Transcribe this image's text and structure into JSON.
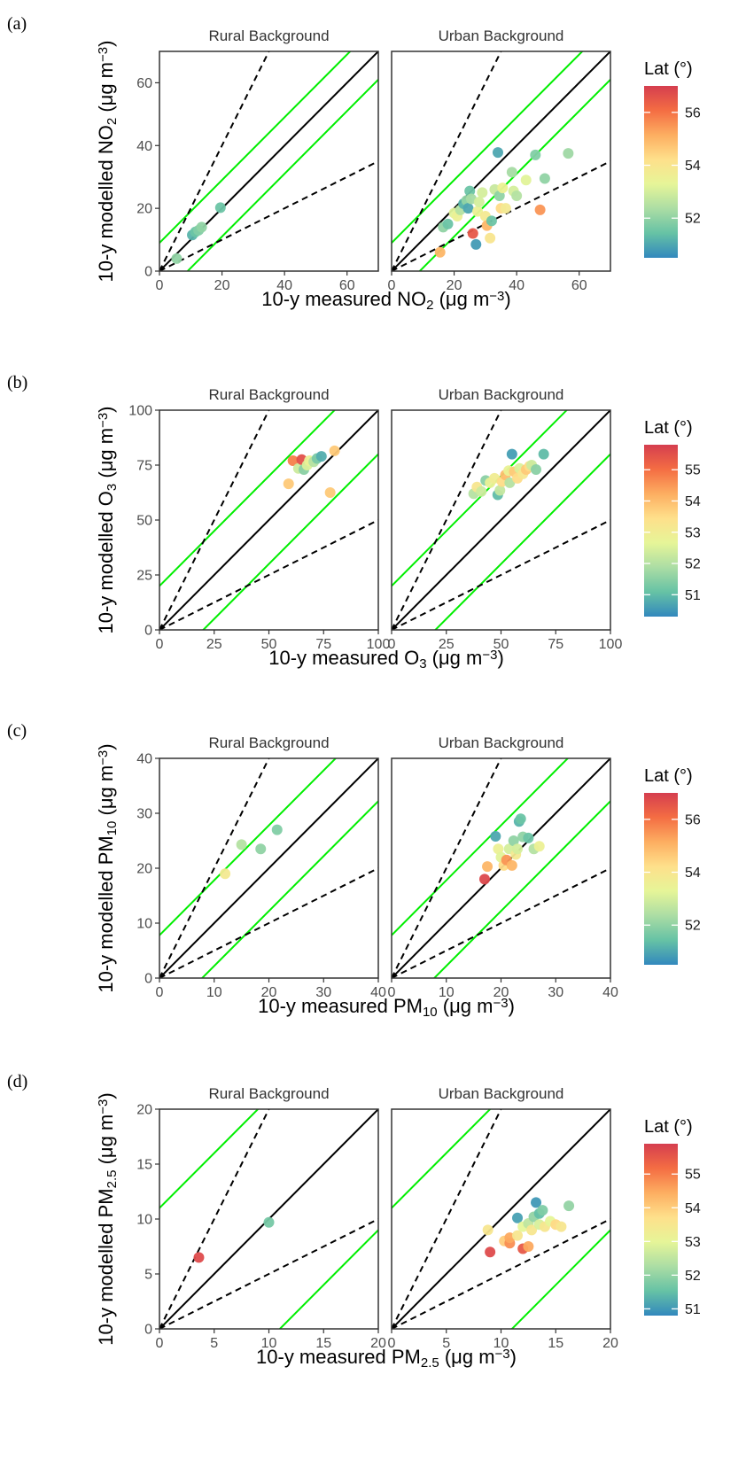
{
  "figure": {
    "colorbar_colors": [
      "#3288bd",
      "#66c2a5",
      "#abdda4",
      "#e6f598",
      "#fee08b",
      "#fdae61",
      "#f46d43",
      "#d53e4f"
    ],
    "line_colors": {
      "one_to_one": "#000000",
      "factor_of_two": "#000000",
      "offset": "#00ee00"
    }
  },
  "chart_data": [
    {
      "panel_label": "(a)",
      "type": "scatter",
      "xlabel": {
        "pre": "10-y measured NO",
        "sub": "2",
        "post": " (μg m",
        "sup": "−3",
        "end": ")"
      },
      "ylabel": {
        "pre": "10-y modelled NO",
        "sub": "2",
        "post": " (μg m",
        "sup": "−3",
        "end": ")"
      },
      "xlim": [
        0,
        70
      ],
      "ylim": [
        0,
        70
      ],
      "xticks": [
        0,
        20,
        40,
        60
      ],
      "yticks": [
        0,
        20,
        40,
        60
      ],
      "offset": 9,
      "legend": {
        "title": "Lat (°)",
        "range": [
          50.5,
          57.0
        ],
        "ticks": [
          52,
          54,
          56
        ]
      },
      "facets": [
        {
          "title": "Rural Background",
          "points": [
            {
              "x": 5.5,
              "y": 4.0,
              "lat": 52.0
            },
            {
              "x": 10.5,
              "y": 11.5,
              "lat": 51.2
            },
            {
              "x": 11.5,
              "y": 12.5,
              "lat": 51.5
            },
            {
              "x": 12.5,
              "y": 13.0,
              "lat": 51.8
            },
            {
              "x": 13.5,
              "y": 14.0,
              "lat": 52.0
            },
            {
              "x": 19.5,
              "y": 20.2,
              "lat": 51.5
            }
          ]
        },
        {
          "title": "Urban Background",
          "points": [
            {
              "x": 15.5,
              "y": 6.0,
              "lat": 55.0
            },
            {
              "x": 16.5,
              "y": 14.0,
              "lat": 52.0
            },
            {
              "x": 18.0,
              "y": 15.0,
              "lat": 51.5
            },
            {
              "x": 20.0,
              "y": 18.5,
              "lat": 53.2
            },
            {
              "x": 21.0,
              "y": 17.5,
              "lat": 53.5
            },
            {
              "x": 22.0,
              "y": 19.5,
              "lat": 52.5
            },
            {
              "x": 23.0,
              "y": 21.5,
              "lat": 51.2
            },
            {
              "x": 24.0,
              "y": 22.5,
              "lat": 52.0
            },
            {
              "x": 24.5,
              "y": 20.0,
              "lat": 51.0
            },
            {
              "x": 25.0,
              "y": 25.5,
              "lat": 51.5
            },
            {
              "x": 25.5,
              "y": 23.0,
              "lat": 52.3
            },
            {
              "x": 26.0,
              "y": 12.0,
              "lat": 56.5
            },
            {
              "x": 27.0,
              "y": 8.5,
              "lat": 50.8
            },
            {
              "x": 27.5,
              "y": 19.0,
              "lat": 53.5
            },
            {
              "x": 28.0,
              "y": 22.0,
              "lat": 53.0
            },
            {
              "x": 29.0,
              "y": 25.0,
              "lat": 53.0
            },
            {
              "x": 30.0,
              "y": 17.5,
              "lat": 53.8
            },
            {
              "x": 30.5,
              "y": 14.5,
              "lat": 55.0
            },
            {
              "x": 31.5,
              "y": 10.5,
              "lat": 54.0
            },
            {
              "x": 32.0,
              "y": 16.0,
              "lat": 51.5
            },
            {
              "x": 33.0,
              "y": 26.0,
              "lat": 52.8
            },
            {
              "x": 34.0,
              "y": 37.8,
              "lat": 51.0
            },
            {
              "x": 34.5,
              "y": 24.0,
              "lat": 52.0
            },
            {
              "x": 35.0,
              "y": 20.0,
              "lat": 54.3
            },
            {
              "x": 35.5,
              "y": 26.5,
              "lat": 53.5
            },
            {
              "x": 36.5,
              "y": 20.0,
              "lat": 53.8
            },
            {
              "x": 38.5,
              "y": 31.5,
              "lat": 52.3
            },
            {
              "x": 39.0,
              "y": 25.5,
              "lat": 53.0
            },
            {
              "x": 40.0,
              "y": 24.0,
              "lat": 52.5
            },
            {
              "x": 43.0,
              "y": 29.0,
              "lat": 53.2
            },
            {
              "x": 46.0,
              "y": 37.0,
              "lat": 51.8
            },
            {
              "x": 47.5,
              "y": 19.5,
              "lat": 55.5
            },
            {
              "x": 49.0,
              "y": 29.5,
              "lat": 52.0
            },
            {
              "x": 56.5,
              "y": 37.5,
              "lat": 52.2
            }
          ]
        }
      ]
    },
    {
      "panel_label": "(b)",
      "type": "scatter",
      "xlabel": {
        "pre": "10-y measured O",
        "sub": "3",
        "post": " (μg m",
        "sup": "−3",
        "end": ")"
      },
      "ylabel": {
        "pre": "10-y modelled O",
        "sub": "3",
        "post": " (μg m",
        "sup": "−3",
        "end": ")"
      },
      "xlim": [
        0,
        100
      ],
      "ylim": [
        0,
        100
      ],
      "xticks": [
        0,
        25,
        50,
        75,
        100
      ],
      "yticks": [
        0,
        25,
        50,
        75,
        100
      ],
      "offset": 20,
      "legend": {
        "title": "Lat (°)",
        "range": [
          50.3,
          55.8
        ],
        "ticks": [
          51,
          52,
          53,
          54,
          55
        ]
      },
      "facets": [
        {
          "title": "Rural Background",
          "points": [
            {
              "x": 59.0,
              "y": 66.5,
              "lat": 53.8
            },
            {
              "x": 61.0,
              "y": 77.0,
              "lat": 54.8
            },
            {
              "x": 63.5,
              "y": 73.5,
              "lat": 52.3
            },
            {
              "x": 65.0,
              "y": 77.5,
              "lat": 55.5
            },
            {
              "x": 66.0,
              "y": 73.0,
              "lat": 51.5
            },
            {
              "x": 67.5,
              "y": 75.0,
              "lat": 52.5
            },
            {
              "x": 68.5,
              "y": 77.0,
              "lat": 52.8
            },
            {
              "x": 70.5,
              "y": 76.5,
              "lat": 52.0
            },
            {
              "x": 72.0,
              "y": 78.0,
              "lat": 51.3
            },
            {
              "x": 74.0,
              "y": 79.0,
              "lat": 50.8
            },
            {
              "x": 78.0,
              "y": 62.5,
              "lat": 53.8
            },
            {
              "x": 80.0,
              "y": 81.5,
              "lat": 53.8
            }
          ]
        },
        {
          "title": "Urban Background",
          "points": [
            {
              "x": 37.5,
              "y": 62.0,
              "lat": 52.0
            },
            {
              "x": 39.0,
              "y": 65.0,
              "lat": 53.2
            },
            {
              "x": 41.0,
              "y": 63.0,
              "lat": 52.3
            },
            {
              "x": 43.0,
              "y": 68.0,
              "lat": 51.5
            },
            {
              "x": 45.0,
              "y": 67.0,
              "lat": 52.8
            },
            {
              "x": 47.0,
              "y": 69.0,
              "lat": 53.0
            },
            {
              "x": 48.5,
              "y": 61.5,
              "lat": 51.0
            },
            {
              "x": 49.5,
              "y": 63.5,
              "lat": 52.2
            },
            {
              "x": 50.5,
              "y": 67.5,
              "lat": 53.5
            },
            {
              "x": 52.0,
              "y": 70.5,
              "lat": 54.0
            },
            {
              "x": 53.5,
              "y": 72.5,
              "lat": 52.8
            },
            {
              "x": 54.0,
              "y": 67.0,
              "lat": 52.0
            },
            {
              "x": 55.0,
              "y": 80.0,
              "lat": 50.6
            },
            {
              "x": 56.0,
              "y": 72.0,
              "lat": 53.8
            },
            {
              "x": 57.5,
              "y": 69.0,
              "lat": 53.5
            },
            {
              "x": 58.5,
              "y": 73.5,
              "lat": 52.5
            },
            {
              "x": 60.0,
              "y": 71.0,
              "lat": 53.2
            },
            {
              "x": 61.5,
              "y": 73.0,
              "lat": 53.8
            },
            {
              "x": 63.0,
              "y": 74.5,
              "lat": 53.5
            },
            {
              "x": 64.0,
              "y": 75.0,
              "lat": 52.3
            },
            {
              "x": 66.0,
              "y": 73.0,
              "lat": 51.5
            },
            {
              "x": 69.5,
              "y": 80.0,
              "lat": 51.0
            }
          ]
        }
      ]
    },
    {
      "panel_label": "(c)",
      "type": "scatter",
      "xlabel": {
        "pre": "10-y measured PM",
        "sub": "10",
        "post": " (μg m",
        "sup": "−3",
        "end": ")"
      },
      "ylabel": {
        "pre": "10-y modelled PM",
        "sub": "10",
        "post": " (μg m",
        "sup": "−3",
        "end": ")"
      },
      "xlim": [
        0,
        40
      ],
      "ylim": [
        0,
        40
      ],
      "xticks": [
        0,
        10,
        20,
        30,
        40
      ],
      "yticks": [
        0,
        10,
        20,
        30,
        40
      ],
      "offset": 7.8,
      "legend": {
        "title": "Lat (°)",
        "range": [
          50.5,
          57.0
        ],
        "ticks": [
          52,
          54,
          56
        ]
      },
      "facets": [
        {
          "title": "Rural Background",
          "points": [
            {
              "x": 12.0,
              "y": 19.0,
              "lat": 53.8
            },
            {
              "x": 15.0,
              "y": 24.3,
              "lat": 52.5
            },
            {
              "x": 18.5,
              "y": 23.5,
              "lat": 52.0
            },
            {
              "x": 21.5,
              "y": 27.0,
              "lat": 51.8
            }
          ]
        },
        {
          "title": "Urban Background",
          "points": [
            {
              "x": 17.0,
              "y": 18.0,
              "lat": 56.8
            },
            {
              "x": 17.5,
              "y": 20.3,
              "lat": 55.0
            },
            {
              "x": 19.0,
              "y": 25.8,
              "lat": 51.0
            },
            {
              "x": 19.5,
              "y": 23.5,
              "lat": 53.5
            },
            {
              "x": 20.0,
              "y": 22.0,
              "lat": 53.2
            },
            {
              "x": 20.5,
              "y": 20.5,
              "lat": 54.3
            },
            {
              "x": 21.0,
              "y": 21.5,
              "lat": 55.5
            },
            {
              "x": 21.5,
              "y": 23.5,
              "lat": 53.0
            },
            {
              "x": 22.0,
              "y": 20.5,
              "lat": 55.0
            },
            {
              "x": 22.3,
              "y": 25.0,
              "lat": 52.0
            },
            {
              "x": 22.7,
              "y": 22.5,
              "lat": 53.8
            },
            {
              "x": 23.0,
              "y": 23.5,
              "lat": 53.0
            },
            {
              "x": 23.3,
              "y": 28.5,
              "lat": 51.2
            },
            {
              "x": 23.6,
              "y": 29.0,
              "lat": 51.5
            },
            {
              "x": 24.0,
              "y": 25.7,
              "lat": 52.0
            },
            {
              "x": 25.0,
              "y": 25.5,
              "lat": 51.5
            },
            {
              "x": 26.0,
              "y": 23.5,
              "lat": 52.5
            },
            {
              "x": 27.0,
              "y": 24.0,
              "lat": 53.5
            }
          ]
        }
      ]
    },
    {
      "panel_label": "(d)",
      "type": "scatter",
      "xlabel": {
        "pre": "10-y measured PM",
        "sub": "2.5",
        "post": " (μg m",
        "sup": "−3",
        "end": ")"
      },
      "ylabel": {
        "pre": "10-y modelled PM",
        "sub": "2.5",
        "post": " (μg m",
        "sup": "−3",
        "end": ")"
      },
      "xlim": [
        0,
        20
      ],
      "ylim": [
        0,
        20
      ],
      "xticks": [
        0,
        5,
        10,
        15,
        20
      ],
      "yticks": [
        0,
        5,
        10,
        15,
        20
      ],
      "offset": 11,
      "legend": {
        "title": "Lat (°)",
        "range": [
          50.8,
          55.9
        ],
        "ticks": [
          51,
          52,
          53,
          54,
          55
        ]
      },
      "facets": [
        {
          "title": "Rural Background",
          "points": [
            {
              "x": 3.6,
              "y": 6.5,
              "lat": 55.7
            },
            {
              "x": 10.0,
              "y": 9.7,
              "lat": 51.7
            }
          ]
        },
        {
          "title": "Urban Background",
          "points": [
            {
              "x": 8.8,
              "y": 9.0,
              "lat": 53.5
            },
            {
              "x": 9.0,
              "y": 7.0,
              "lat": 55.7
            },
            {
              "x": 10.3,
              "y": 8.0,
              "lat": 54.0
            },
            {
              "x": 10.8,
              "y": 7.8,
              "lat": 54.8
            },
            {
              "x": 10.8,
              "y": 8.3,
              "lat": 54.5
            },
            {
              "x": 11.5,
              "y": 8.5,
              "lat": 53.5
            },
            {
              "x": 11.5,
              "y": 10.1,
              "lat": 51.1
            },
            {
              "x": 12.0,
              "y": 7.3,
              "lat": 55.5
            },
            {
              "x": 12.0,
              "y": 9.3,
              "lat": 53.0
            },
            {
              "x": 12.5,
              "y": 7.5,
              "lat": 54.5
            },
            {
              "x": 12.5,
              "y": 9.6,
              "lat": 52.5
            },
            {
              "x": 12.8,
              "y": 9.0,
              "lat": 53.5
            },
            {
              "x": 13.0,
              "y": 10.2,
              "lat": 52.0
            },
            {
              "x": 13.2,
              "y": 11.5,
              "lat": 51.0
            },
            {
              "x": 13.5,
              "y": 10.5,
              "lat": 51.5
            },
            {
              "x": 13.5,
              "y": 9.5,
              "lat": 52.8
            },
            {
              "x": 13.8,
              "y": 10.8,
              "lat": 51.8
            },
            {
              "x": 14.0,
              "y": 9.3,
              "lat": 53.5
            },
            {
              "x": 14.5,
              "y": 9.8,
              "lat": 53.0
            },
            {
              "x": 15.0,
              "y": 9.5,
              "lat": 53.8
            },
            {
              "x": 15.5,
              "y": 9.3,
              "lat": 53.5
            },
            {
              "x": 16.2,
              "y": 11.2,
              "lat": 52.0
            }
          ]
        }
      ]
    }
  ]
}
